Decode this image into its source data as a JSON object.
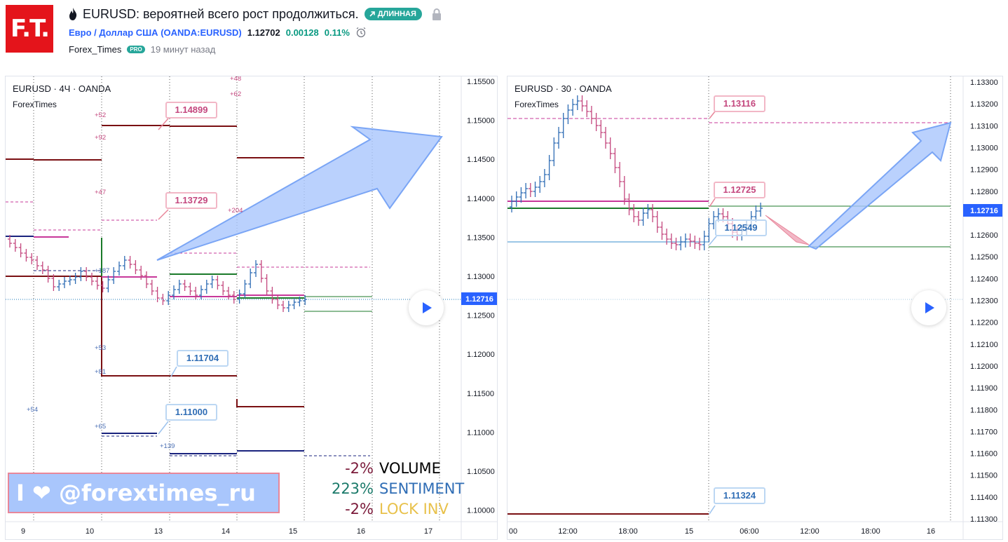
{
  "header": {
    "logo_text": "F.T.",
    "title": "EURUSD: вероятней всего рост продолжиться.",
    "direction_badge": "ДЛИННАЯ",
    "symbol_name": "Евро / Доллар США",
    "symbol_ticker": "(OANDA:EURUSD)",
    "price": "1.12702",
    "change": "0.00128",
    "change_pct": "0.11%",
    "author": "Forex_Times",
    "author_badge": "PRO",
    "time_ago": "19 минут назад"
  },
  "left_chart": {
    "legend": "EURUSD · 4Ч · OANDA",
    "indicator": "ForexTimes",
    "price_axis": [
      "1.15500",
      "1.15000",
      "1.14500",
      "1.14000",
      "1.13500",
      "1.13000",
      "1.12500",
      "1.12000",
      "1.11500",
      "1.11000",
      "1.10500",
      "1.10000"
    ],
    "current_price": "1.12716",
    "time_axis": [
      "9",
      "10",
      "13",
      "14",
      "15",
      "16",
      "17"
    ],
    "callouts": [
      "1.14899",
      "1.13729",
      "1.11704",
      "1.11000"
    ],
    "small_labels": [
      "+48",
      "+62",
      "+52",
      "+92",
      "+47",
      "+204",
      "+187",
      "+53",
      "+81",
      "+54",
      "+65",
      "+139"
    ],
    "watermark": "I ❤ @forextimes_ru",
    "stats": [
      {
        "value": "-2%",
        "label": "VOLUME",
        "value_color": "#7b1a3a",
        "label_color": "#000000"
      },
      {
        "value": "223%",
        "label": "SENTIMENT",
        "value_color": "#1b7a6a",
        "label_color": "#2f6db5"
      },
      {
        "value": "-2%",
        "label": "LOCK INV",
        "value_color": "#7b1a3a",
        "label_color": "#e8c14a"
      }
    ]
  },
  "right_chart": {
    "legend": "EURUSD · 30 · OANDA",
    "indicator": "ForexTimes",
    "price_axis": [
      "1.13300",
      "1.13200",
      "1.13100",
      "1.13000",
      "1.12900",
      "1.12800",
      "1.12700",
      "1.12600",
      "1.12500",
      "1.12400",
      "1.12300",
      "1.12200",
      "1.12100",
      "1.12000",
      "1.11900",
      "1.11800",
      "1.11700",
      "1.11600",
      "1.11500",
      "1.11400",
      "1.11300"
    ],
    "current_price": "1.12716",
    "time_axis": [
      "00",
      "12:00",
      "18:00",
      "15",
      "06:00",
      "12:00",
      "18:00",
      "16"
    ],
    "callouts": [
      "1.13116",
      "1.12725",
      "1.12549",
      "1.11324"
    ]
  },
  "colors": {
    "accent": "#2962ff",
    "up_candle": "#2f6db5",
    "down_candle": "#c4477e",
    "dark_red_line": "#7a0f12",
    "green_line": "#1b7a2a",
    "magenta_line": "#c7389a",
    "navy_line": "#1a237e"
  }
}
